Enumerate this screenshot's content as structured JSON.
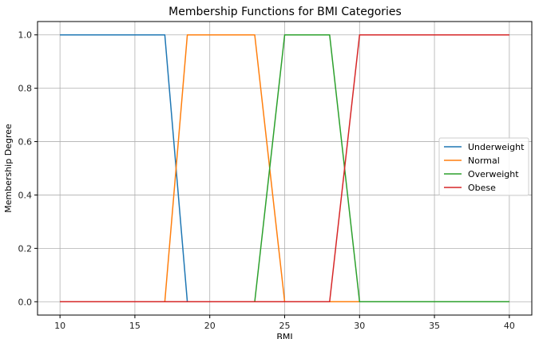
{
  "chart_data": {
    "type": "line",
    "title": "Membership Functions for BMI Categories",
    "xlabel": "BMI",
    "ylabel": "Membership Degree",
    "xlim": [
      8.5,
      41.5
    ],
    "ylim": [
      -0.05,
      1.05
    ],
    "xticks": [
      10,
      15,
      20,
      25,
      30,
      35,
      40
    ],
    "yticks": [
      0.0,
      0.2,
      0.4,
      0.6,
      0.8,
      1.0
    ],
    "grid": true,
    "legend_position": "right",
    "series": [
      {
        "name": "Underweight",
        "color": "#1f77b4",
        "x": [
          10,
          17,
          18.5,
          40
        ],
        "y": [
          1,
          1,
          0,
          0
        ]
      },
      {
        "name": "Normal",
        "color": "#ff7f0e",
        "x": [
          10,
          17,
          18.5,
          23,
          25,
          40
        ],
        "y": [
          0,
          0,
          1,
          1,
          0,
          0
        ]
      },
      {
        "name": "Overweight",
        "color": "#2ca02c",
        "x": [
          10,
          23,
          25,
          28,
          30,
          40
        ],
        "y": [
          0,
          0,
          1,
          1,
          0,
          0
        ]
      },
      {
        "name": "Obese",
        "color": "#d62728",
        "x": [
          10,
          28,
          30,
          40
        ],
        "y": [
          0,
          0,
          1,
          1
        ]
      }
    ]
  }
}
